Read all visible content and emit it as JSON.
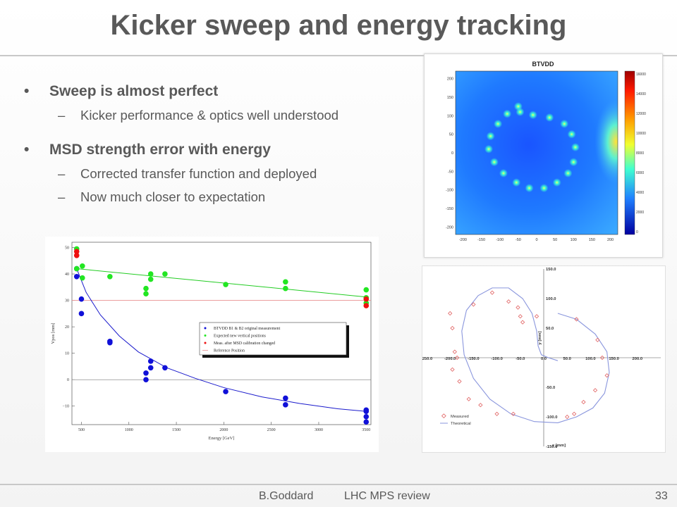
{
  "slide": {
    "title": "Kicker sweep and energy tracking",
    "bullets": [
      {
        "text": "Sweep is almost perfect",
        "sub": [
          "Kicker performance & optics well understood"
        ]
      },
      {
        "text": "MSD strength error with energy",
        "sub": [
          "Corrected transfer function and deployed",
          "Now much closer to expectation"
        ]
      }
    ],
    "footer": {
      "author": "B.Goddard",
      "event": "LHC MPS review",
      "page": "33"
    }
  },
  "colors": {
    "blue": "#1010d8",
    "green": "#22e622",
    "red": "#ee1111",
    "fit_blue": "#1a1acc",
    "fit_green": "#22cc22",
    "ref_line": "#e89090",
    "measured": "#e06060",
    "theoretical": "#8a96dd"
  },
  "chart_data": [
    {
      "type": "heatmap",
      "title": "BTVDD",
      "x_ticks": [
        "-200",
        "-150",
        "-100",
        "-50",
        "0",
        "50",
        "100",
        "150",
        "200"
      ],
      "y_ticks": [
        "200",
        "150",
        "100",
        "50",
        "0",
        "-50",
        "-100",
        "-150",
        "-200"
      ],
      "colorbar_ticks": [
        "16000",
        "14000",
        "12000",
        "10000",
        "8000",
        "6000",
        "4000",
        "2000",
        "0"
      ],
      "spots": [
        {
          "x": -50,
          "y": 125
        },
        {
          "x": -10,
          "y": 102
        },
        {
          "x": 35,
          "y": 95
        },
        {
          "x": 75,
          "y": 78
        },
        {
          "x": 95,
          "y": 50
        },
        {
          "x": 105,
          "y": 15
        },
        {
          "x": 100,
          "y": -25
        },
        {
          "x": 85,
          "y": -55
        },
        {
          "x": 55,
          "y": -80
        },
        {
          "x": 20,
          "y": -95
        },
        {
          "x": -20,
          "y": -95
        },
        {
          "x": -55,
          "y": -80
        },
        {
          "x": -90,
          "y": -55
        },
        {
          "x": -115,
          "y": -25
        },
        {
          "x": -130,
          "y": 10
        },
        {
          "x": -125,
          "y": 45
        },
        {
          "x": -105,
          "y": 78
        },
        {
          "x": -80,
          "y": 105
        },
        {
          "x": -45,
          "y": 110
        }
      ]
    },
    {
      "type": "scatter",
      "xlabel": "Energy [GeV]",
      "ylabel": "Vpos [mm]",
      "xlim": [
        400,
        3550
      ],
      "ylim": [
        -17,
        52
      ],
      "x_ticks": [
        500,
        1000,
        1500,
        2000,
        2500,
        3000,
        3500
      ],
      "y_ticks": [
        50,
        40,
        30,
        20,
        10,
        0,
        -10
      ],
      "reference_position": 30,
      "legend": [
        "BTVDD B1 & B2 original measurement",
        "Expected new vertical positions",
        "Meas. after MSD calibration changed",
        "Reference Position"
      ],
      "series": [
        {
          "name": "BTVDD B1 & B2 original measurement",
          "x": [
            450,
            450,
            500,
            500,
            800,
            800,
            1180,
            1180,
            1230,
            1230,
            1380,
            2020,
            2650,
            2650,
            3500,
            3500,
            3500,
            3500
          ],
          "y": [
            42,
            39,
            30.5,
            25,
            14,
            14.5,
            2.5,
            0,
            7,
            4.5,
            4.5,
            -4.5,
            -7,
            -9.5,
            -11.5,
            -14,
            -16,
            -12
          ]
        },
        {
          "name": "Expected new vertical positions",
          "x": [
            450,
            450,
            510,
            510,
            800,
            1180,
            1180,
            1230,
            1230,
            1380,
            2020,
            2650,
            2650,
            3500,
            3500,
            3500
          ],
          "y": [
            49.5,
            42,
            43,
            38.5,
            39,
            34.5,
            32.5,
            40,
            38,
            40,
            36,
            37,
            34.5,
            34,
            31,
            29
          ]
        },
        {
          "name": "Meas. after MSD calibration changed",
          "x": [
            450,
            450,
            3500,
            3500
          ],
          "y": [
            48.5,
            47,
            30.5,
            28
          ]
        }
      ],
      "fits": [
        {
          "name": "blue",
          "x": [
            450,
            550,
            700,
            900,
            1100,
            1400,
            1700,
            2000,
            2400,
            2800,
            3200,
            3500
          ],
          "y": [
            42,
            33,
            24.5,
            16.5,
            10.5,
            4.5,
            0.5,
            -3,
            -6.5,
            -9,
            -11,
            -12
          ]
        },
        {
          "name": "green",
          "x": [
            450,
            3500
          ],
          "y": [
            42,
            31.3
          ]
        }
      ]
    },
    {
      "type": "scatter",
      "xlabel": "x [mm]",
      "ylabel": "y [mm]",
      "xlim": [
        -250,
        250
      ],
      "ylim": [
        -150,
        150
      ],
      "x_ticks": [
        "-250.0",
        "-200.0",
        "-150.0",
        "-100.0",
        "-50.0",
        "0.0",
        "50.0",
        "100.0",
        "150.0",
        "200.0"
      ],
      "y_ticks": [
        "150.0",
        "100.0",
        "50.0",
        "0.0",
        "-50.0",
        "-100.0",
        "-150.0"
      ],
      "legend": [
        "Measured",
        "Theoretical"
      ],
      "series": [
        {
          "name": "Measured",
          "x": [
            -200,
            -195,
            -185,
            -150,
            -110,
            -75,
            -55,
            -50,
            -45,
            -15,
            70,
            115,
            125,
            135,
            110,
            85,
            65,
            50,
            -65,
            -100,
            -135,
            -160,
            -180,
            -195,
            -190
          ],
          "y": [
            75,
            50,
            0,
            90,
            110,
            95,
            85,
            70,
            60,
            70,
            65,
            30,
            0,
            -30,
            -55,
            -75,
            -95,
            -100,
            -95,
            -95,
            -80,
            -70,
            -40,
            -20,
            10
          ]
        },
        {
          "name": "Theoretical",
          "x": [
            30,
            70,
            110,
            135,
            140,
            130,
            105,
            70,
            30,
            -20,
            -70,
            -115,
            -150,
            -170,
            -175,
            -165,
            -140,
            -110,
            -75,
            -45,
            -25,
            -15,
            -12,
            -5,
            10,
            30
          ],
          "y": [
            75,
            65,
            40,
            10,
            -25,
            -60,
            -85,
            -100,
            -110,
            -108,
            -95,
            -70,
            -35,
            5,
            45,
            80,
            105,
            118,
            118,
            100,
            75,
            45,
            20,
            5,
            0,
            -5
          ]
        }
      ]
    }
  ]
}
